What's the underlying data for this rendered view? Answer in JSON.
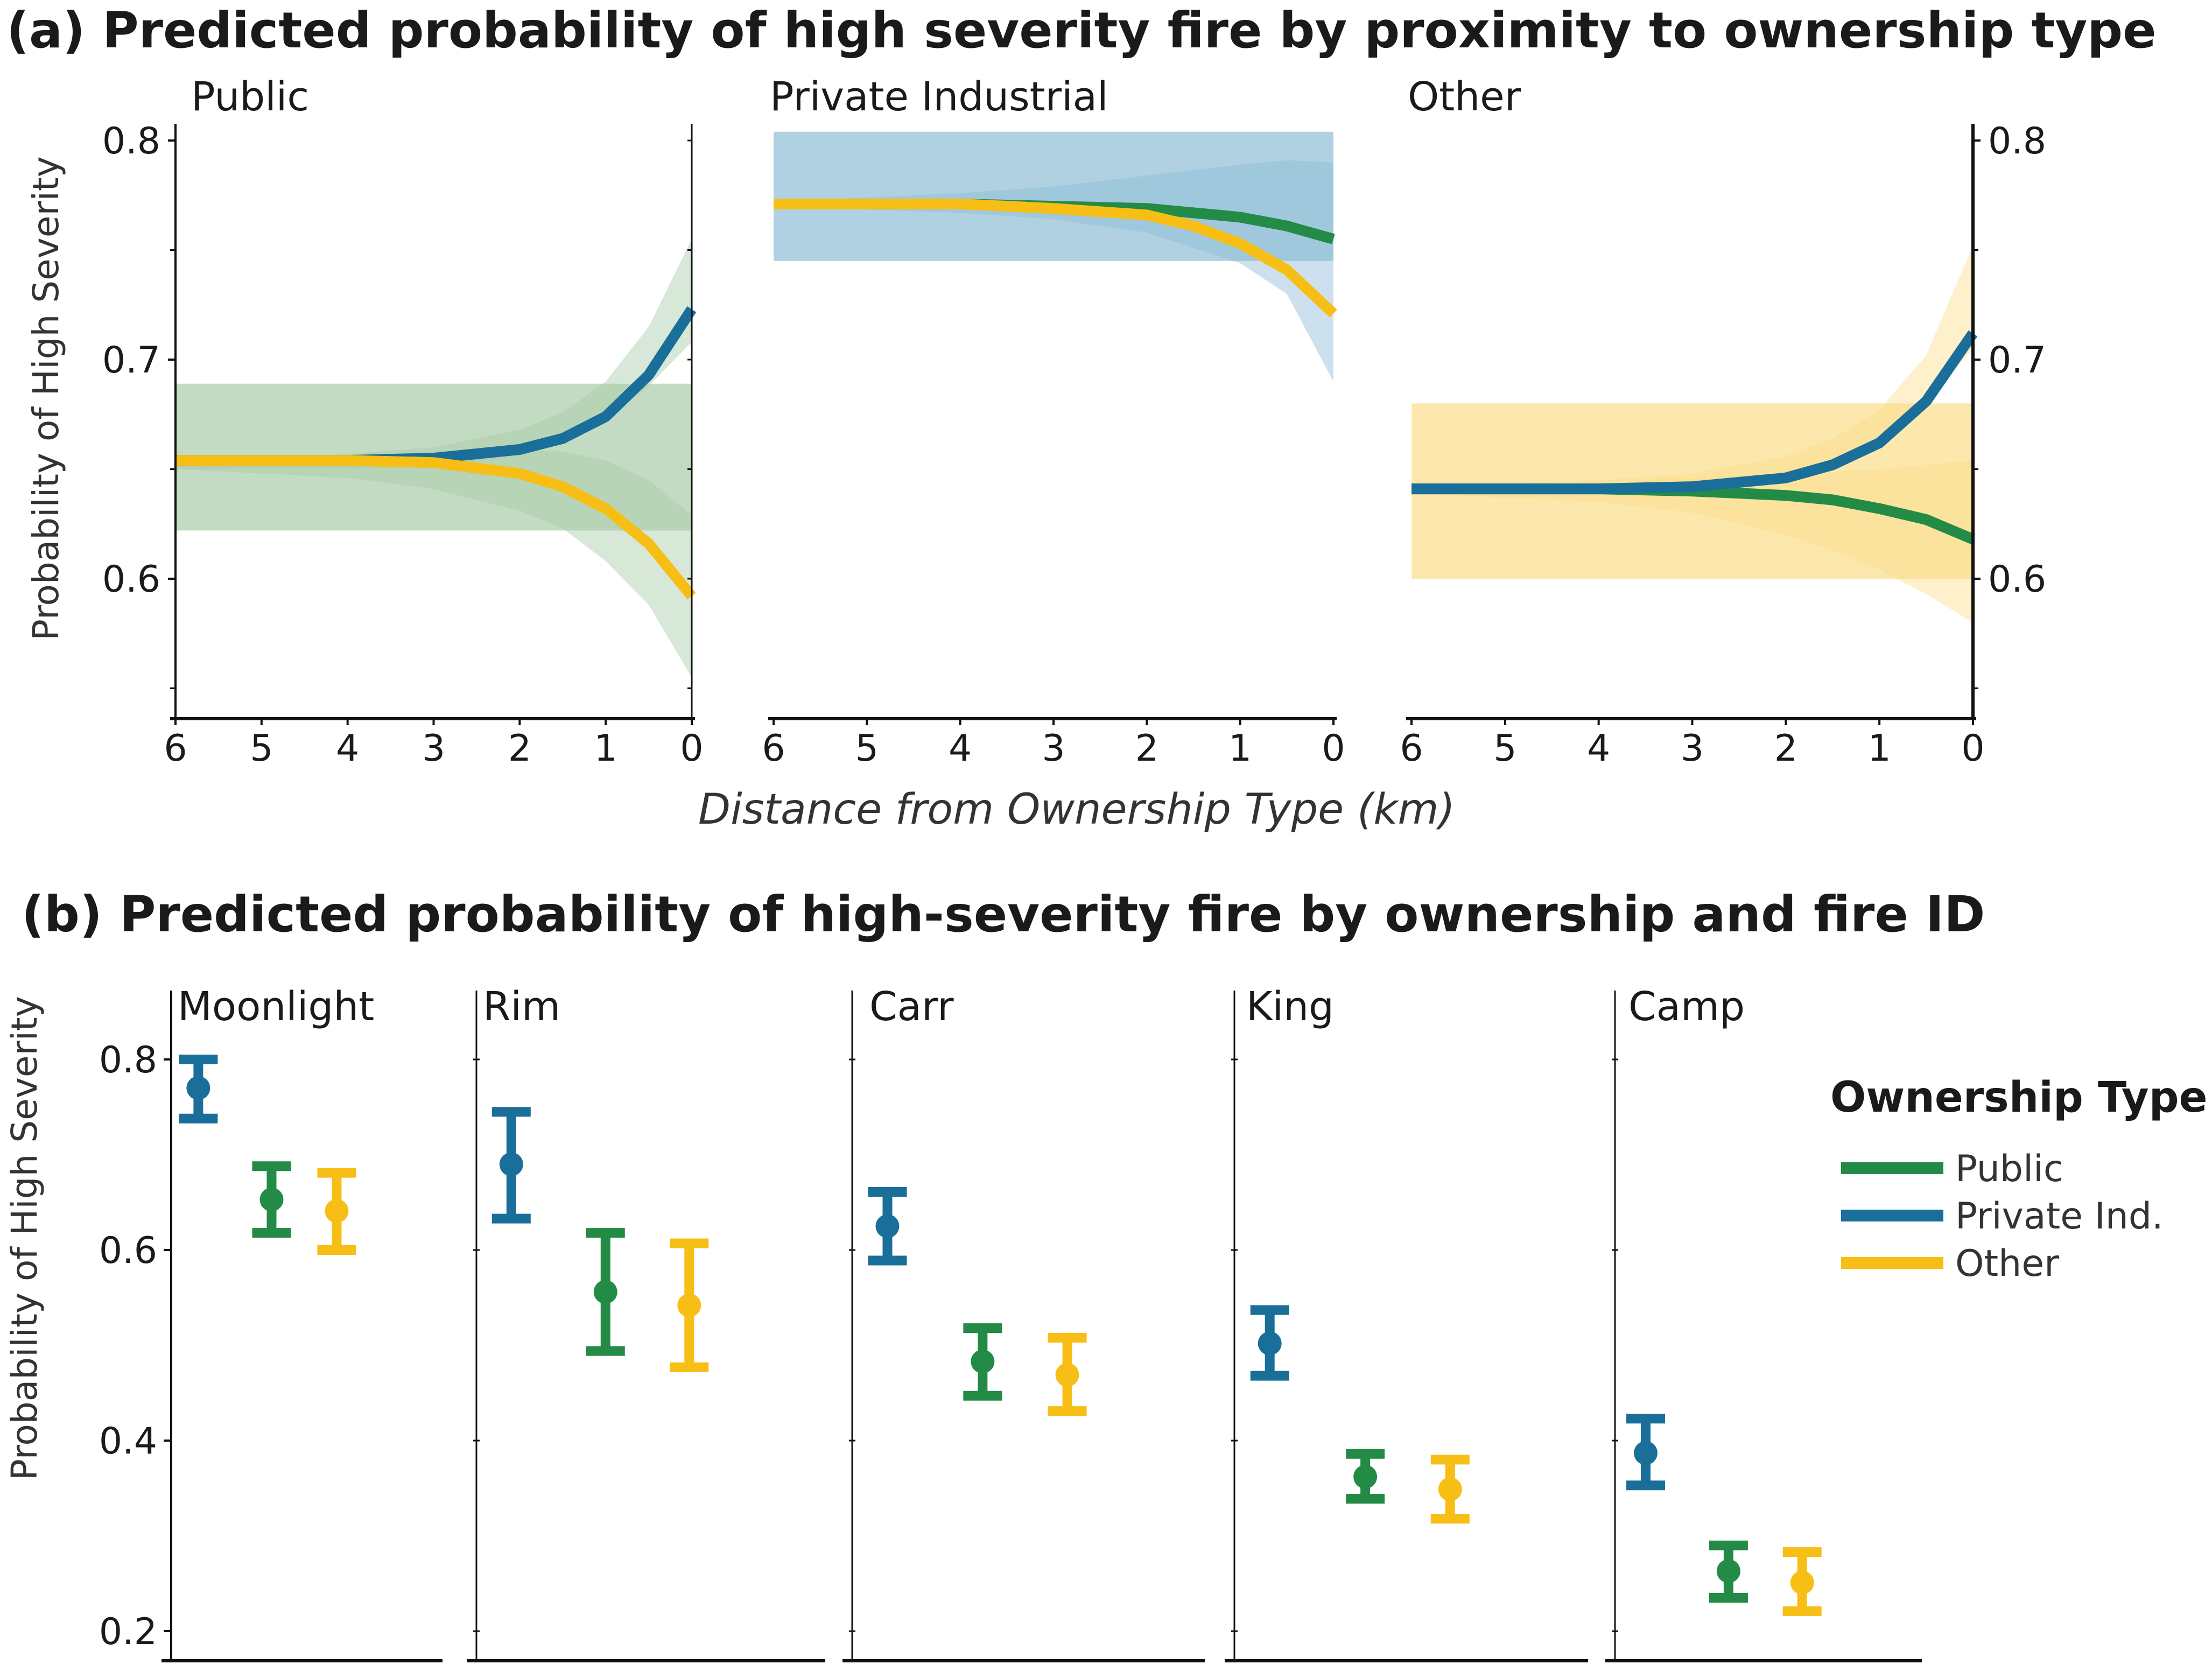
{
  "colors": {
    "public": "#238b45",
    "private": "#1a6e9a",
    "other": "#f7be16",
    "public_band": "#a9cca9",
    "private_band": "#8fbdd6",
    "other_band": "#fbde8a"
  },
  "panel_a": {
    "title": "(a) Predicted probability of high severity fire by proximity to ownership type",
    "xlabel": "Distance from Ownership Type (km)",
    "ylabel": "Probability of High Severity",
    "y_ticks": [
      "0.6",
      "0.7",
      "0.8"
    ],
    "x_ticks": [
      "6",
      "5",
      "4",
      "3",
      "2",
      "1",
      "0"
    ]
  },
  "panel_b": {
    "title": "(b) Predicted probability of high-severity fire by ownership and fire ID",
    "ylabel": "Probability of High Severity",
    "y_ticks": [
      "0.2",
      "0.4",
      "0.6",
      "0.8"
    ]
  },
  "legend": {
    "title": "Ownership Type",
    "items": [
      {
        "key": "public",
        "label": "Public"
      },
      {
        "key": "private",
        "label": "Private Ind."
      },
      {
        "key": "other",
        "label": "Other"
      }
    ]
  },
  "chart_data": [
    {
      "type": "line",
      "panel": "a",
      "xlabel": "Distance from Ownership Type (km)",
      "ylabel": "Probability of High Severity",
      "xlim": [
        6,
        0
      ],
      "ylim": [
        0.55,
        0.81
      ],
      "facets": [
        {
          "label": "Public",
          "band_key": "public",
          "bands": [
            {
              "key": "public",
              "x": [
                6,
                3,
                2,
                1,
                0.5,
                0
              ],
              "lower": [
                0.622,
                0.622,
                0.622,
                0.622,
                0.622,
                0.622
              ],
              "upper": [
                0.689,
                0.689,
                0.689,
                0.689,
                0.689,
                0.689
              ]
            },
            {
              "key": "public",
              "x": [
                6,
                4,
                3,
                2,
                1.5,
                1,
                0.5,
                0
              ],
              "lower": [
                0.65,
                0.65,
                0.651,
                0.656,
                0.662,
                0.672,
                0.688,
                0.708
              ],
              "upper": [
                0.652,
                0.657,
                0.66,
                0.668,
                0.676,
                0.69,
                0.715,
                0.755
              ]
            },
            {
              "key": "public",
              "x": [
                6,
                4,
                3,
                2,
                1.5,
                1,
                0.5,
                0
              ],
              "lower": [
                0.65,
                0.646,
                0.641,
                0.631,
                0.623,
                0.608,
                0.588,
                0.555
              ],
              "upper": [
                0.652,
                0.655,
                0.657,
                0.659,
                0.658,
                0.654,
                0.645,
                0.629
              ]
            }
          ],
          "series": [
            {
              "name": "Private Ind.",
              "key": "private",
              "x": [
                6,
                5,
                4,
                3,
                2,
                1.5,
                1,
                0.5,
                0
              ],
              "y": [
                0.654,
                0.654,
                0.654,
                0.655,
                0.659,
                0.664,
                0.674,
                0.693,
                0.723
              ]
            },
            {
              "name": "Other",
              "key": "other",
              "x": [
                6,
                5,
                4,
                3,
                2,
                1.5,
                1,
                0.5,
                0
              ],
              "y": [
                0.654,
                0.654,
                0.654,
                0.653,
                0.648,
                0.642,
                0.632,
                0.616,
                0.592
              ]
            }
          ]
        },
        {
          "label": "Private Industrial",
          "band_key": "private",
          "bands": [
            {
              "key": "private",
              "x": [
                6,
                3,
                2,
                1,
                0.5,
                0
              ],
              "lower": [
                0.745,
                0.745,
                0.745,
                0.745,
                0.745,
                0.745
              ],
              "upper": [
                0.804,
                0.804,
                0.804,
                0.804,
                0.804,
                0.804
              ]
            },
            {
              "key": "private",
              "x": [
                6,
                4,
                3,
                2,
                1,
                0.5,
                0
              ],
              "lower": [
                0.77,
                0.767,
                0.764,
                0.758,
                0.744,
                0.73,
                0.69
              ],
              "upper": [
                0.772,
                0.776,
                0.779,
                0.784,
                0.789,
                0.791,
                0.79
              ]
            }
          ],
          "series": [
            {
              "name": "Public",
              "key": "public",
              "x": [
                6,
                5,
                4,
                3,
                2,
                1.5,
                1,
                0.5,
                0
              ],
              "y": [
                0.771,
                0.771,
                0.771,
                0.77,
                0.769,
                0.767,
                0.765,
                0.761,
                0.755
              ]
            },
            {
              "name": "Other",
              "key": "other",
              "x": [
                6,
                5,
                4,
                3,
                2,
                1.5,
                1,
                0.5,
                0
              ],
              "y": [
                0.771,
                0.771,
                0.771,
                0.769,
                0.766,
                0.761,
                0.753,
                0.741,
                0.721
              ]
            }
          ]
        },
        {
          "label": "Other",
          "band_key": "other",
          "bands": [
            {
              "key": "other",
              "x": [
                6,
                3,
                2,
                1,
                0.5,
                0
              ],
              "lower": [
                0.6,
                0.6,
                0.6,
                0.6,
                0.6,
                0.6
              ],
              "upper": [
                0.68,
                0.68,
                0.68,
                0.68,
                0.68,
                0.68
              ]
            },
            {
              "key": "other",
              "x": [
                6,
                4,
                3,
                2,
                1.5,
                1,
                0.5,
                0
              ],
              "lower": [
                0.64,
                0.64,
                0.641,
                0.646,
                0.652,
                0.662,
                0.68,
                0.705
              ],
              "upper": [
                0.642,
                0.645,
                0.648,
                0.656,
                0.664,
                0.677,
                0.702,
                0.752
              ]
            },
            {
              "key": "other",
              "x": [
                6,
                4,
                3,
                2,
                1.5,
                1,
                0.5,
                0
              ],
              "lower": [
                0.639,
                0.635,
                0.63,
                0.62,
                0.613,
                0.604,
                0.593,
                0.58
              ],
              "upper": [
                0.641,
                0.644,
                0.646,
                0.648,
                0.649,
                0.65,
                0.652,
                0.654
              ]
            }
          ],
          "series": [
            {
              "name": "Public",
              "key": "public",
              "x": [
                6,
                5,
                4,
                3,
                2,
                1.5,
                1,
                0.5,
                0
              ],
              "y": [
                0.641,
                0.641,
                0.641,
                0.64,
                0.638,
                0.636,
                0.632,
                0.627,
                0.618
              ]
            },
            {
              "name": "Private Ind.",
              "key": "private",
              "x": [
                6,
                5,
                4,
                3,
                2,
                1.5,
                1,
                0.5,
                0
              ],
              "y": [
                0.641,
                0.641,
                0.641,
                0.642,
                0.646,
                0.652,
                0.662,
                0.681,
                0.712
              ]
            }
          ]
        }
      ]
    },
    {
      "type": "errorbar",
      "panel": "b",
      "ylabel": "Probability of High Severity",
      "ylim": [
        0.19,
        0.83
      ],
      "categories": [
        "Private Ind.",
        "Public",
        "Other"
      ],
      "facets": [
        {
          "label": "Moonlight",
          "points": [
            {
              "key": "private",
              "y": 0.77,
              "lower": 0.738,
              "upper": 0.8
            },
            {
              "key": "public",
              "y": 0.653,
              "lower": 0.618,
              "upper": 0.688
            },
            {
              "key": "other",
              "y": 0.641,
              "lower": 0.6,
              "upper": 0.681
            }
          ]
        },
        {
          "label": "Rim",
          "points": [
            {
              "key": "private",
              "y": 0.69,
              "lower": 0.633,
              "upper": 0.745
            },
            {
              "key": "public",
              "y": 0.556,
              "lower": 0.494,
              "upper": 0.618
            },
            {
              "key": "other",
              "y": 0.542,
              "lower": 0.477,
              "upper": 0.607
            }
          ]
        },
        {
          "label": "Carr",
          "points": [
            {
              "key": "private",
              "y": 0.625,
              "lower": 0.589,
              "upper": 0.661
            },
            {
              "key": "public",
              "y": 0.483,
              "lower": 0.447,
              "upper": 0.518
            },
            {
              "key": "other",
              "y": 0.469,
              "lower": 0.431,
              "upper": 0.508
            }
          ]
        },
        {
          "label": "King",
          "points": [
            {
              "key": "private",
              "y": 0.502,
              "lower": 0.468,
              "upper": 0.537
            },
            {
              "key": "public",
              "y": 0.362,
              "lower": 0.339,
              "upper": 0.386
            },
            {
              "key": "other",
              "y": 0.349,
              "lower": 0.318,
              "upper": 0.38
            }
          ]
        },
        {
          "label": "Camp",
          "points": [
            {
              "key": "private",
              "y": 0.387,
              "lower": 0.353,
              "upper": 0.423
            },
            {
              "key": "public",
              "y": 0.263,
              "lower": 0.235,
              "upper": 0.29
            },
            {
              "key": "other",
              "y": 0.251,
              "lower": 0.221,
              "upper": 0.283
            }
          ]
        }
      ]
    }
  ]
}
